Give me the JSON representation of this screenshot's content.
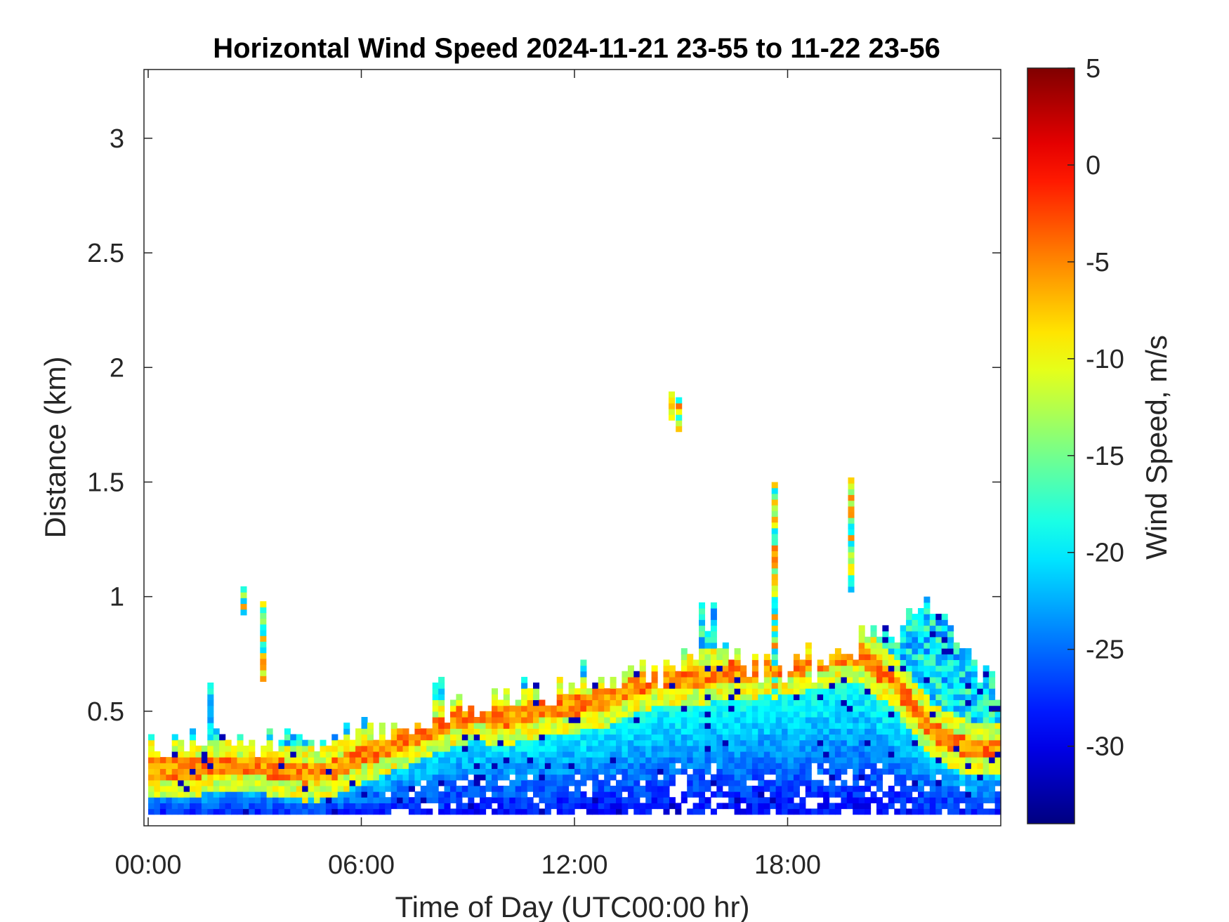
{
  "chart_data": {
    "type": "heatmap",
    "title": "Horizontal Wind Speed 2024-11-21 23-55 to 11-22 23-56",
    "xlabel": "Time of Day (UTC00:00 hr)",
    "ylabel": "Distance (km)",
    "colorbar_label": "Wind Speed, m/s",
    "xlim_hours": [
      0,
      24
    ],
    "ylim_km": [
      0,
      3.3
    ],
    "x_ticks": [
      "00:00",
      "06:00",
      "12:00",
      "18:00"
    ],
    "y_ticks": [
      "0.5",
      "1",
      "1.5",
      "2",
      "2.5",
      "3"
    ],
    "colorbar_ticks": [
      "5",
      "0",
      "-5",
      "-10",
      "-15",
      "-20",
      "-25",
      "-30"
    ],
    "clim": [
      -34,
      5
    ],
    "colormap": "jet",
    "grid": false,
    "data_summary": {
      "time_step_minutes": 10,
      "range_gate_km": 0.025,
      "lowest_gate_km": 0.05,
      "profile_top_km": [
        0.33,
        0.35,
        0.35,
        0.36,
        0.37,
        0.38,
        0.4,
        0.42,
        0.48,
        0.5,
        0.55,
        0.58,
        0.58,
        0.62,
        0.65,
        0.7,
        0.72,
        0.68,
        0.66,
        0.7,
        0.8,
        0.85,
        0.95,
        0.75,
        0.55
      ],
      "strongest_wind_band_km": [
        0.24,
        0.24,
        0.25,
        0.25,
        0.22,
        0.22,
        0.3,
        0.36,
        0.42,
        0.48,
        0.46,
        0.5,
        0.52,
        0.55,
        0.62,
        0.63,
        0.65,
        0.67,
        0.68,
        0.72,
        0.74,
        0.6,
        0.4,
        0.33,
        0.33
      ],
      "isolated_returns": [
        {
          "time_h": 2.6,
          "from_km": 0.92,
          "to_km": 1.03
        },
        {
          "time_h": 3.15,
          "from_km": 0.63,
          "to_km": 0.98
        },
        {
          "time_h": 14.65,
          "from_km": 1.77,
          "to_km": 1.89
        },
        {
          "time_h": 14.85,
          "from_km": 1.72,
          "to_km": 1.86
        },
        {
          "time_h": 17.55,
          "from_km": 0.55,
          "to_km": 1.48
        },
        {
          "time_h": 19.7,
          "from_km": 1.02,
          "to_km": 1.5
        }
      ]
    }
  }
}
